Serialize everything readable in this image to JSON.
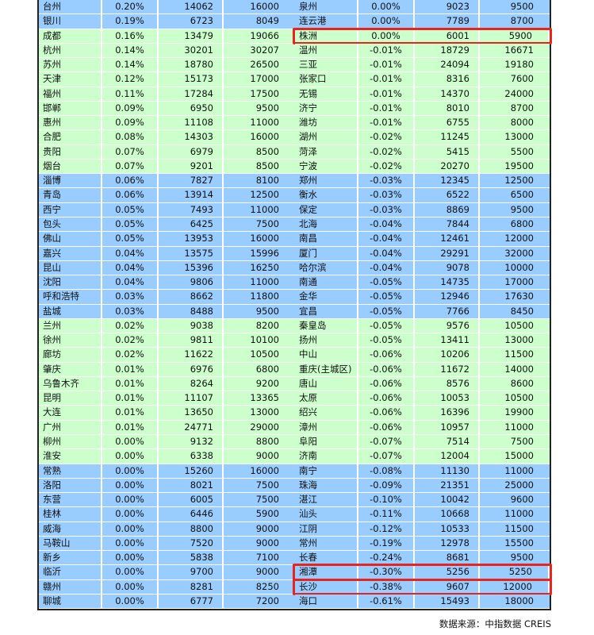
{
  "colors": {
    "blue": "#99CCFF",
    "green": "#CCFFCC",
    "highlight": "#E8241C"
  },
  "left": {
    "bands": "BBGGGGGGGGGGBBBBBBBBBBGGGGGGGGGGBBBBBBBBBB",
    "rows": [
      [
        "台州",
        "0.20%",
        "14062",
        "16000"
      ],
      [
        "银川",
        "0.19%",
        "6723",
        "8049"
      ],
      [
        "成都",
        "0.16%",
        "13479",
        "19066"
      ],
      [
        "杭州",
        "0.14%",
        "30201",
        "30207"
      ],
      [
        "苏州",
        "0.14%",
        "18780",
        "26500"
      ],
      [
        "天津",
        "0.12%",
        "15173",
        "17000"
      ],
      [
        "福州",
        "0.11%",
        "17284",
        "17500"
      ],
      [
        "邯郸",
        "0.09%",
        "6950",
        "9500"
      ],
      [
        "惠州",
        "0.09%",
        "11108",
        "11000"
      ],
      [
        "合肥",
        "0.08%",
        "14303",
        "16000"
      ],
      [
        "贵阳",
        "0.07%",
        "6979",
        "8500"
      ],
      [
        "烟台",
        "0.07%",
        "9201",
        "8500"
      ],
      [
        "淄博",
        "0.06%",
        "7827",
        "8100"
      ],
      [
        "青岛",
        "0.06%",
        "13914",
        "12500"
      ],
      [
        "西宁",
        "0.05%",
        "7493",
        "11000"
      ],
      [
        "包头",
        "0.05%",
        "6425",
        "7500"
      ],
      [
        "佛山",
        "0.05%",
        "13953",
        "16000"
      ],
      [
        "嘉兴",
        "0.04%",
        "13575",
        "15996"
      ],
      [
        "昆山",
        "0.04%",
        "15396",
        "16250"
      ],
      [
        "沈阳",
        "0.04%",
        "9806",
        "11000"
      ],
      [
        "呼和浩特",
        "0.03%",
        "8662",
        "11800"
      ],
      [
        "盐城",
        "0.03%",
        "8488",
        "9500"
      ],
      [
        "兰州",
        "0.02%",
        "9038",
        "8200"
      ],
      [
        "徐州",
        "0.02%",
        "9811",
        "10100"
      ],
      [
        "廊坊",
        "0.02%",
        "11622",
        "10500"
      ],
      [
        "肇庆",
        "0.01%",
        "6976",
        "6800"
      ],
      [
        "乌鲁木齐",
        "0.01%",
        "8264",
        "9200"
      ],
      [
        "昆明",
        "0.01%",
        "11107",
        "13365"
      ],
      [
        "大连",
        "0.01%",
        "13650",
        "13000"
      ],
      [
        "广州",
        "0.01%",
        "24771",
        "29000"
      ],
      [
        "柳州",
        "0.00%",
        "9132",
        "8800"
      ],
      [
        "淮安",
        "0.00%",
        "6338",
        "9000"
      ],
      [
        "常熟",
        "0.00%",
        "15260",
        "16000"
      ],
      [
        "洛阳",
        "0.00%",
        "8021",
        "7500"
      ],
      [
        "东营",
        "0.00%",
        "6005",
        "7500"
      ],
      [
        "桂林",
        "0.00%",
        "6446",
        "5900"
      ],
      [
        "威海",
        "0.00%",
        "8800",
        "9000"
      ],
      [
        "马鞍山",
        "0.00%",
        "7520",
        "9000"
      ],
      [
        "新乡",
        "0.00%",
        "5838",
        "7100"
      ],
      [
        "临沂",
        "0.00%",
        "9700",
        "9000"
      ],
      [
        "赣州",
        "0.00%",
        "8281",
        "8250"
      ],
      [
        "聊城",
        "0.00%",
        "6777",
        "7200"
      ]
    ],
    "highlighted": []
  },
  "right": {
    "bands": "BBGGGGGGGGGGBBBBBBBBBBGGGGGGGGGGBBBBBBBBBB",
    "rows": [
      [
        "泉州",
        "0.00%",
        "9023",
        "9500"
      ],
      [
        "连云港",
        "0.00%",
        "7789",
        "8700"
      ],
      [
        "株洲",
        "0.00%",
        "6001",
        "5900"
      ],
      [
        "温州",
        "-0.01%",
        "18729",
        "16671"
      ],
      [
        "三亚",
        "-0.01%",
        "24094",
        "19180"
      ],
      [
        "张家口",
        "-0.01%",
        "8316",
        "7600"
      ],
      [
        "无锡",
        "-0.01%",
        "14370",
        "24000"
      ],
      [
        "济宁",
        "-0.01%",
        "8010",
        "8700"
      ],
      [
        "潍坊",
        "-0.01%",
        "6755",
        "8000"
      ],
      [
        "湖州",
        "-0.02%",
        "11245",
        "13000"
      ],
      [
        "菏泽",
        "-0.02%",
        "5415",
        "5500"
      ],
      [
        "宁波",
        "-0.02%",
        "20270",
        "19500"
      ],
      [
        "郑州",
        "-0.03%",
        "12345",
        "12500"
      ],
      [
        "衡水",
        "-0.03%",
        "6522",
        "6500"
      ],
      [
        "保定",
        "-0.03%",
        "8869",
        "9500"
      ],
      [
        "北海",
        "-0.04%",
        "7844",
        "6800"
      ],
      [
        "南昌",
        "-0.04%",
        "12461",
        "12000"
      ],
      [
        "厦门",
        "-0.04%",
        "29291",
        "32000"
      ],
      [
        "哈尔滨",
        "-0.04%",
        "9078",
        "10000"
      ],
      [
        "南通",
        "-0.05%",
        "14735",
        "17000"
      ],
      [
        "金华",
        "-0.05%",
        "12946",
        "17630"
      ],
      [
        "宜昌",
        "-0.05%",
        "7766",
        "8450"
      ],
      [
        "秦皇岛",
        "-0.05%",
        "9576",
        "10500"
      ],
      [
        "扬州",
        "-0.05%",
        "13411",
        "13000"
      ],
      [
        "中山",
        "-0.06%",
        "10206",
        "11500"
      ],
      [
        "重庆(主城区)",
        "-0.06%",
        "11672",
        "14000"
      ],
      [
        "唐山",
        "-0.06%",
        "8576",
        "8600"
      ],
      [
        "太原",
        "-0.06%",
        "10053",
        "10500"
      ],
      [
        "绍兴",
        "-0.06%",
        "16396",
        "19900"
      ],
      [
        "漳州",
        "-0.06%",
        "10957",
        "11000"
      ],
      [
        "阜阳",
        "-0.07%",
        "7514",
        "7500"
      ],
      [
        "济南",
        "-0.07%",
        "12004",
        "15000"
      ],
      [
        "南宁",
        "-0.08%",
        "11130",
        "11000"
      ],
      [
        "珠海",
        "-0.09%",
        "21351",
        "25000"
      ],
      [
        "湛江",
        "-0.10%",
        "10042",
        "9600"
      ],
      [
        "汕头",
        "-0.11%",
        "10668",
        "11000"
      ],
      [
        "江阴",
        "-0.12%",
        "10533",
        "11500"
      ],
      [
        "常州",
        "-0.19%",
        "12978",
        "15500"
      ],
      [
        "长春",
        "-0.24%",
        "8681",
        "9500"
      ],
      [
        "湘潭",
        "-0.30%",
        "5256",
        "5250"
      ],
      [
        "长沙",
        "-0.38%",
        "9607",
        "12000"
      ],
      [
        "海口",
        "-0.61%",
        "15493",
        "18000"
      ]
    ],
    "highlighted": [
      2,
      39,
      40
    ]
  },
  "source": "数据来源：中指数据 CREIS"
}
